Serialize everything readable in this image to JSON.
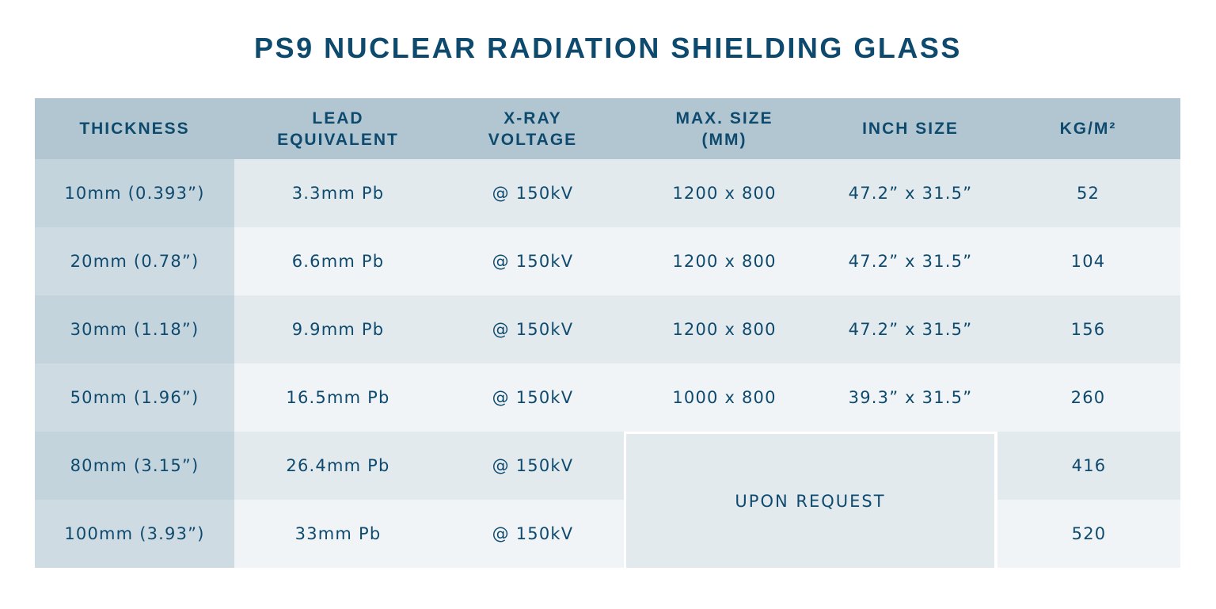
{
  "title": "PS9 NUCLEAR RADIATION SHIELDING GLASS",
  "headers": [
    "THICKNESS",
    "LEAD\nEQUIVALENT",
    "X-RAY\nVOLTAGE",
    "MAX. SIZE\n(MM)",
    "INCH SIZE",
    "KG/M²"
  ],
  "rows": [
    [
      "10mm (0.393”)",
      "3.3mm Pb",
      "@ 150kV",
      "1200 x 800",
      "47.2” x 31.5”",
      "52"
    ],
    [
      "20mm (0.78”)",
      "6.6mm Pb",
      "@ 150kV",
      "1200 x 800",
      "47.2” x 31.5”",
      "104"
    ],
    [
      "30mm (1.18”)",
      "9.9mm Pb",
      "@ 150kV",
      "1200 x 800",
      "47.2” x 31.5”",
      "156"
    ],
    [
      "50mm (1.96”)",
      "16.5mm Pb",
      "@ 150kV",
      "1000 x 800",
      "39.3” x 31.5”",
      "260"
    ],
    [
      "80mm (3.15”)",
      "26.4mm Pb",
      "@ 150kV",
      null,
      null,
      "416"
    ],
    [
      "100mm (3.93”)",
      "33mm Pb",
      "@ 150kV",
      null,
      null,
      "520"
    ]
  ],
  "merged_size_note": "UPON REQUEST",
  "colors": {
    "text": "#0e4a6e",
    "header_bg": "#b2c6d1",
    "row_odd": "#e3eaee",
    "row_even": "#f0f4f7"
  }
}
